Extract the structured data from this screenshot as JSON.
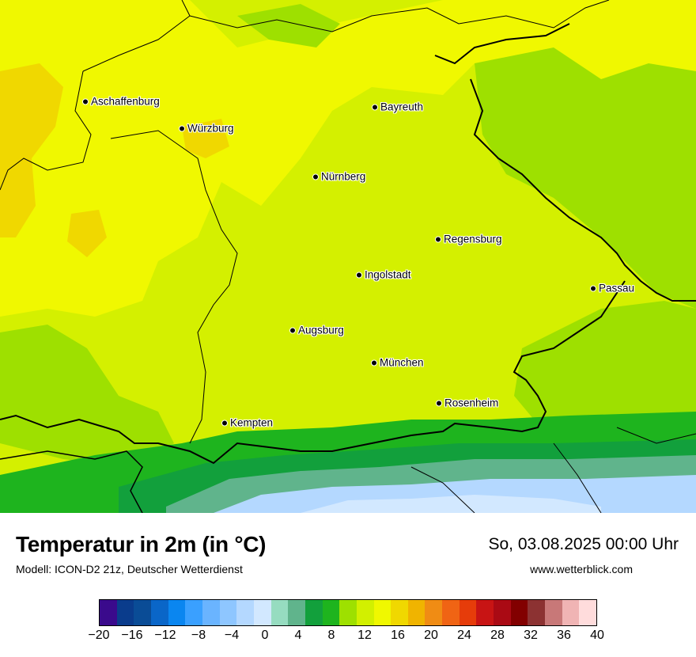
{
  "title": "Temperatur in 2m (in °C)",
  "model": "Modell: ICON-D2 21z, Deutscher Wetterdienst",
  "datetime": "So, 03.08.2025 00:00 Uhr",
  "website": "www.wetterblick.com",
  "cities": [
    {
      "name": "Aschaffenburg"
    },
    {
      "name": "Würzburg"
    },
    {
      "name": "Bayreuth"
    },
    {
      "name": "Nürnberg"
    },
    {
      "name": "Regensburg"
    },
    {
      "name": "Ingolstadt"
    },
    {
      "name": "Passau"
    },
    {
      "name": "Augsburg"
    },
    {
      "name": "München"
    },
    {
      "name": "Rosenheim"
    },
    {
      "name": "Kempten"
    }
  ],
  "legend": {
    "colors": [
      "#3a0a8c",
      "#0a3c8c",
      "#0a4c96",
      "#0a66c8",
      "#0a86f0",
      "#3aa0ff",
      "#6ab4ff",
      "#8ec6ff",
      "#b4d8ff",
      "#d2e8ff",
      "#96dcc0",
      "#60b48c",
      "#12a03c",
      "#1eb41e",
      "#9ee000",
      "#d2f000",
      "#f0f800",
      "#f0d800",
      "#f0b400",
      "#f08c14",
      "#f06414",
      "#e63c0a",
      "#c81414",
      "#aa0a14",
      "#820000",
      "#8c3232",
      "#c87878",
      "#f0b4b4",
      "#ffdcdc"
    ],
    "ticks": [
      "−20",
      "−16",
      "−12",
      "−8",
      "−4",
      "0",
      "4",
      "8",
      "12",
      "16",
      "20",
      "24",
      "28",
      "32",
      "36",
      "40"
    ]
  },
  "colors": {
    "base_temp": "#d4f000",
    "warm_temp": "#f0f800",
    "warmer_temp": "#f0d800",
    "cool_temp": "#9ee000",
    "alpine_green": "#1eb41e",
    "alpine_dark": "#12a03c",
    "alpine_teal": "#60b48c",
    "alpine_cold": "#b4d8ff",
    "border": "#000000"
  }
}
